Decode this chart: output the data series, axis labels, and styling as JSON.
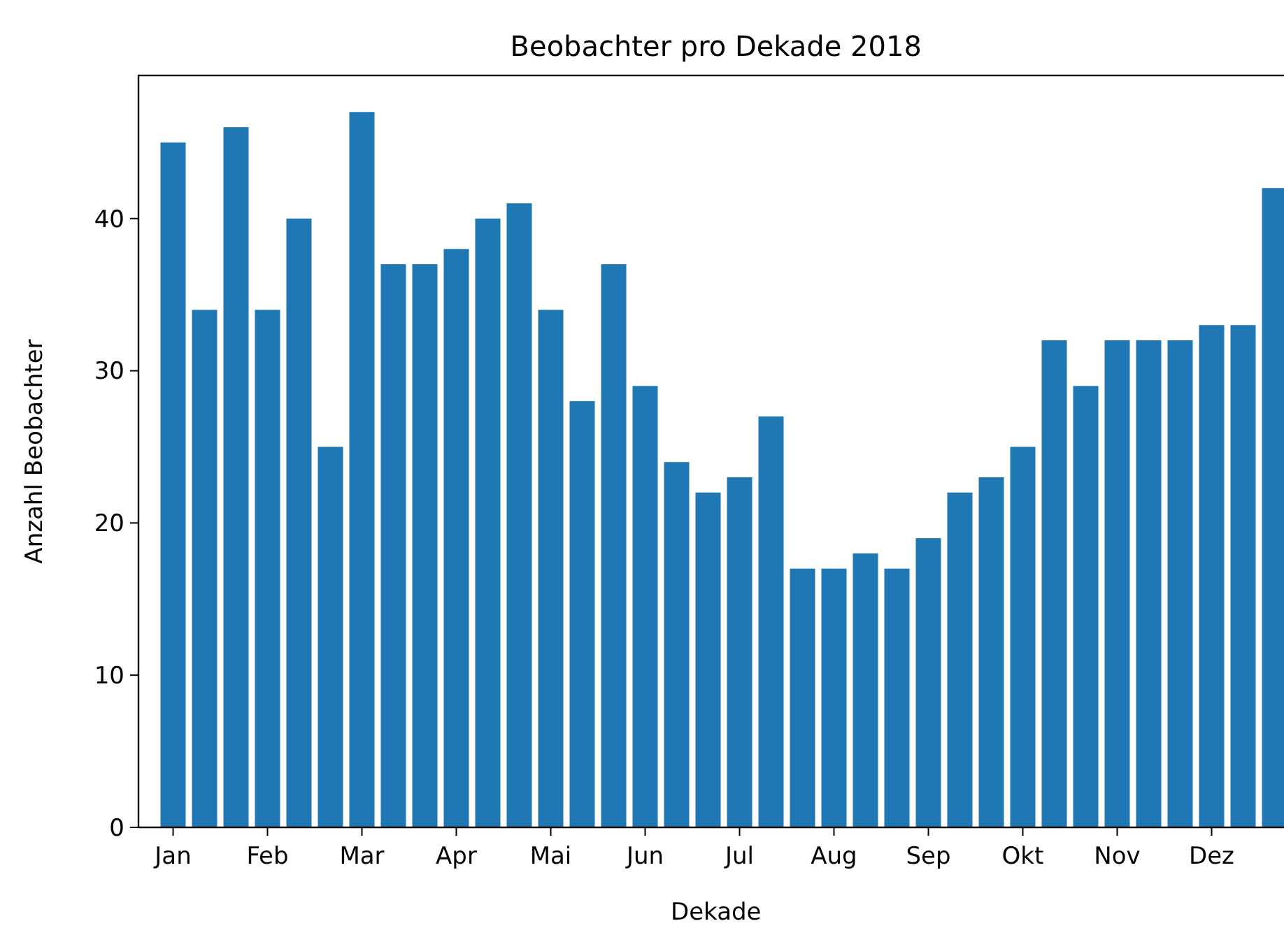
{
  "chart_data": {
    "type": "bar",
    "title": "Beobachter pro Dekade 2018",
    "xlabel": "Dekade",
    "ylabel": "Anzahl Beobachter",
    "categories": [
      "Jan",
      null,
      null,
      "Feb",
      null,
      null,
      "Mar",
      null,
      null,
      "Apr",
      null,
      null,
      "Mai",
      null,
      null,
      "Jun",
      null,
      null,
      "Jul",
      null,
      null,
      "Aug",
      null,
      null,
      "Sep",
      null,
      null,
      "Okt",
      null,
      null,
      "Nov",
      null,
      null,
      "Dez",
      null,
      null
    ],
    "values": [
      45,
      34,
      46,
      34,
      40,
      25,
      47,
      37,
      37,
      38,
      40,
      41,
      34,
      28,
      37,
      29,
      24,
      22,
      23,
      27,
      17,
      17,
      18,
      17,
      19,
      22,
      23,
      25,
      32,
      29,
      32,
      32,
      32,
      33,
      33,
      42
    ],
    "color": "#1f77b4",
    "ylim": [
      0,
      49.4
    ],
    "yticks": [
      0,
      10,
      20,
      30,
      40
    ],
    "grid": false
  }
}
